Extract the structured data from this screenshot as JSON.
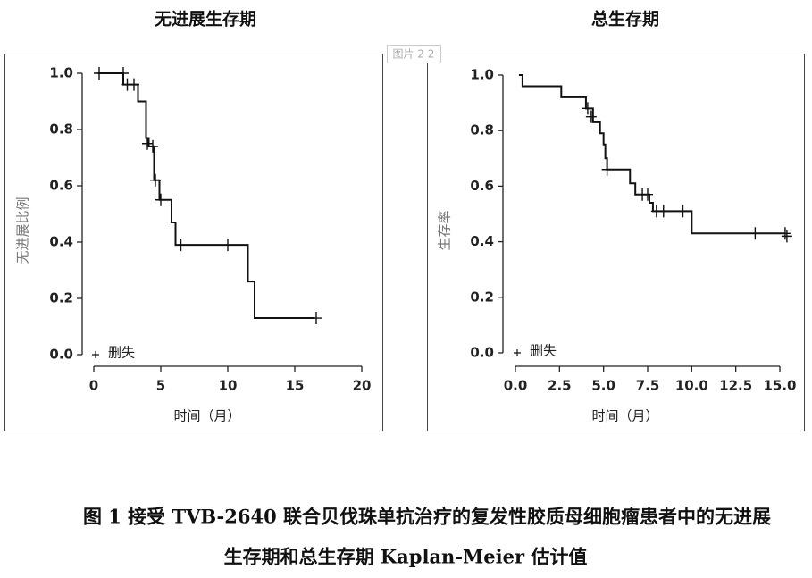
{
  "chart_data": [
    {
      "type": "line",
      "title": "无进展生存期",
      "x_label": "时间（月）",
      "y_label": "无进展比例",
      "xlim": [
        0,
        20
      ],
      "xticks": [
        0,
        5,
        10,
        15,
        20
      ],
      "ylim": [
        0,
        1
      ],
      "yticks": [
        {
          "value": 0,
          "label": "0.0"
        },
        0.2,
        0.4,
        0.6,
        0.8,
        {
          "value": 1,
          "label": "1.0"
        }
      ],
      "legend": "bottom-left",
      "series": [
        {
          "color": "#111111",
          "step": true,
          "x": [
            0.3,
            2.2,
            2.5,
            3.3,
            3.9,
            4.1,
            4.5,
            4.9,
            5.8,
            6.1,
            11.5,
            12,
            16.5
          ],
          "values": [
            1.0,
            0.96,
            0.96,
            0.9,
            0.77,
            0.74,
            0.62,
            0.55,
            0.47,
            0.39,
            0.26,
            0.13,
            0.13
          ]
        },
        {
          "name": "删失",
          "color": "#111111",
          "marker": "+",
          "x": [
            0.4,
            2.2,
            2.5,
            3.0,
            4.0,
            4.4,
            4.6,
            5.0,
            6.5,
            10,
            16.6
          ],
          "values": [
            1.0,
            1.0,
            0.96,
            0.96,
            0.75,
            0.74,
            0.62,
            0.55,
            0.39,
            0.39,
            0.13
          ]
        }
      ]
    },
    {
      "type": "line",
      "title": "总生存期",
      "x_label": "时间（月）",
      "y_label": "生存率",
      "xlim": [
        0,
        15
      ],
      "xticks": [
        {
          "value": 0,
          "label": "0.0"
        },
        2.5,
        {
          "value": 5,
          "label": "5.0"
        },
        7.5,
        {
          "value": 10,
          "label": "10.0"
        },
        12.5,
        {
          "value": 15,
          "label": "15.0"
        }
      ],
      "ylim": [
        0,
        1
      ],
      "yticks": [
        {
          "value": 0,
          "label": "0.0"
        },
        0.2,
        0.4,
        0.6,
        0.8,
        {
          "value": 1,
          "label": "1.0"
        }
      ],
      "legend": "bottom-left",
      "series": [
        {
          "color": "#111111",
          "step": true,
          "x": [
            0.2,
            0.4,
            2.6,
            4.0,
            4.4,
            4.8,
            5.0,
            5.1,
            5.2,
            6.5,
            6.8,
            7.6,
            7.8,
            10.0,
            15.3
          ],
          "values": [
            1.0,
            0.96,
            0.92,
            0.88,
            0.83,
            0.79,
            0.75,
            0.7,
            0.66,
            0.61,
            0.57,
            0.54,
            0.51,
            0.43,
            0.43
          ]
        },
        {
          "name": "删失",
          "color": "#111111",
          "marker": "+",
          "x": [
            4.1,
            4.3,
            5.2,
            7.2,
            7.5,
            8.0,
            8.4,
            9.5,
            13.6,
            15.3,
            15.4
          ],
          "values": [
            0.88,
            0.85,
            0.66,
            0.57,
            0.57,
            0.51,
            0.51,
            0.51,
            0.43,
            0.43,
            0.42
          ]
        }
      ]
    }
  ],
  "watermark": "图片 2 2",
  "caption_lines": [
    "图 1  接受 TVB-2640 联合贝伐珠单抗治疗的复发性胶质母细胞瘤患者中的无进展",
    "生存期和总生存期 Kaplan-Meier 估计值"
  ]
}
